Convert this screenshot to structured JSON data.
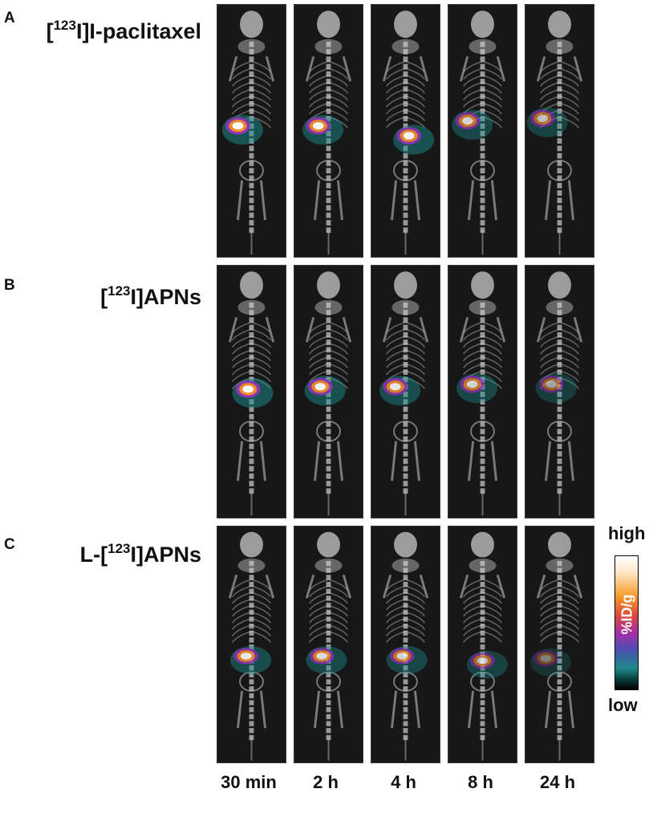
{
  "rows": [
    {
      "letter": "A",
      "prefix": "[",
      "sup": "123",
      "suffix": "I]I-paclitaxel"
    },
    {
      "letter": "B",
      "prefix": "[",
      "sup": "123",
      "suffix": "I]APNs"
    },
    {
      "letter": "C",
      "prefix": "L-[",
      "sup": "123",
      "suffix": "I]APNs"
    }
  ],
  "time_points": [
    "30 min",
    "2 h",
    "4 h",
    "8 h",
    "24 h"
  ],
  "scale": {
    "high": "high",
    "low": "low",
    "unit": "%ID/g"
  }
}
